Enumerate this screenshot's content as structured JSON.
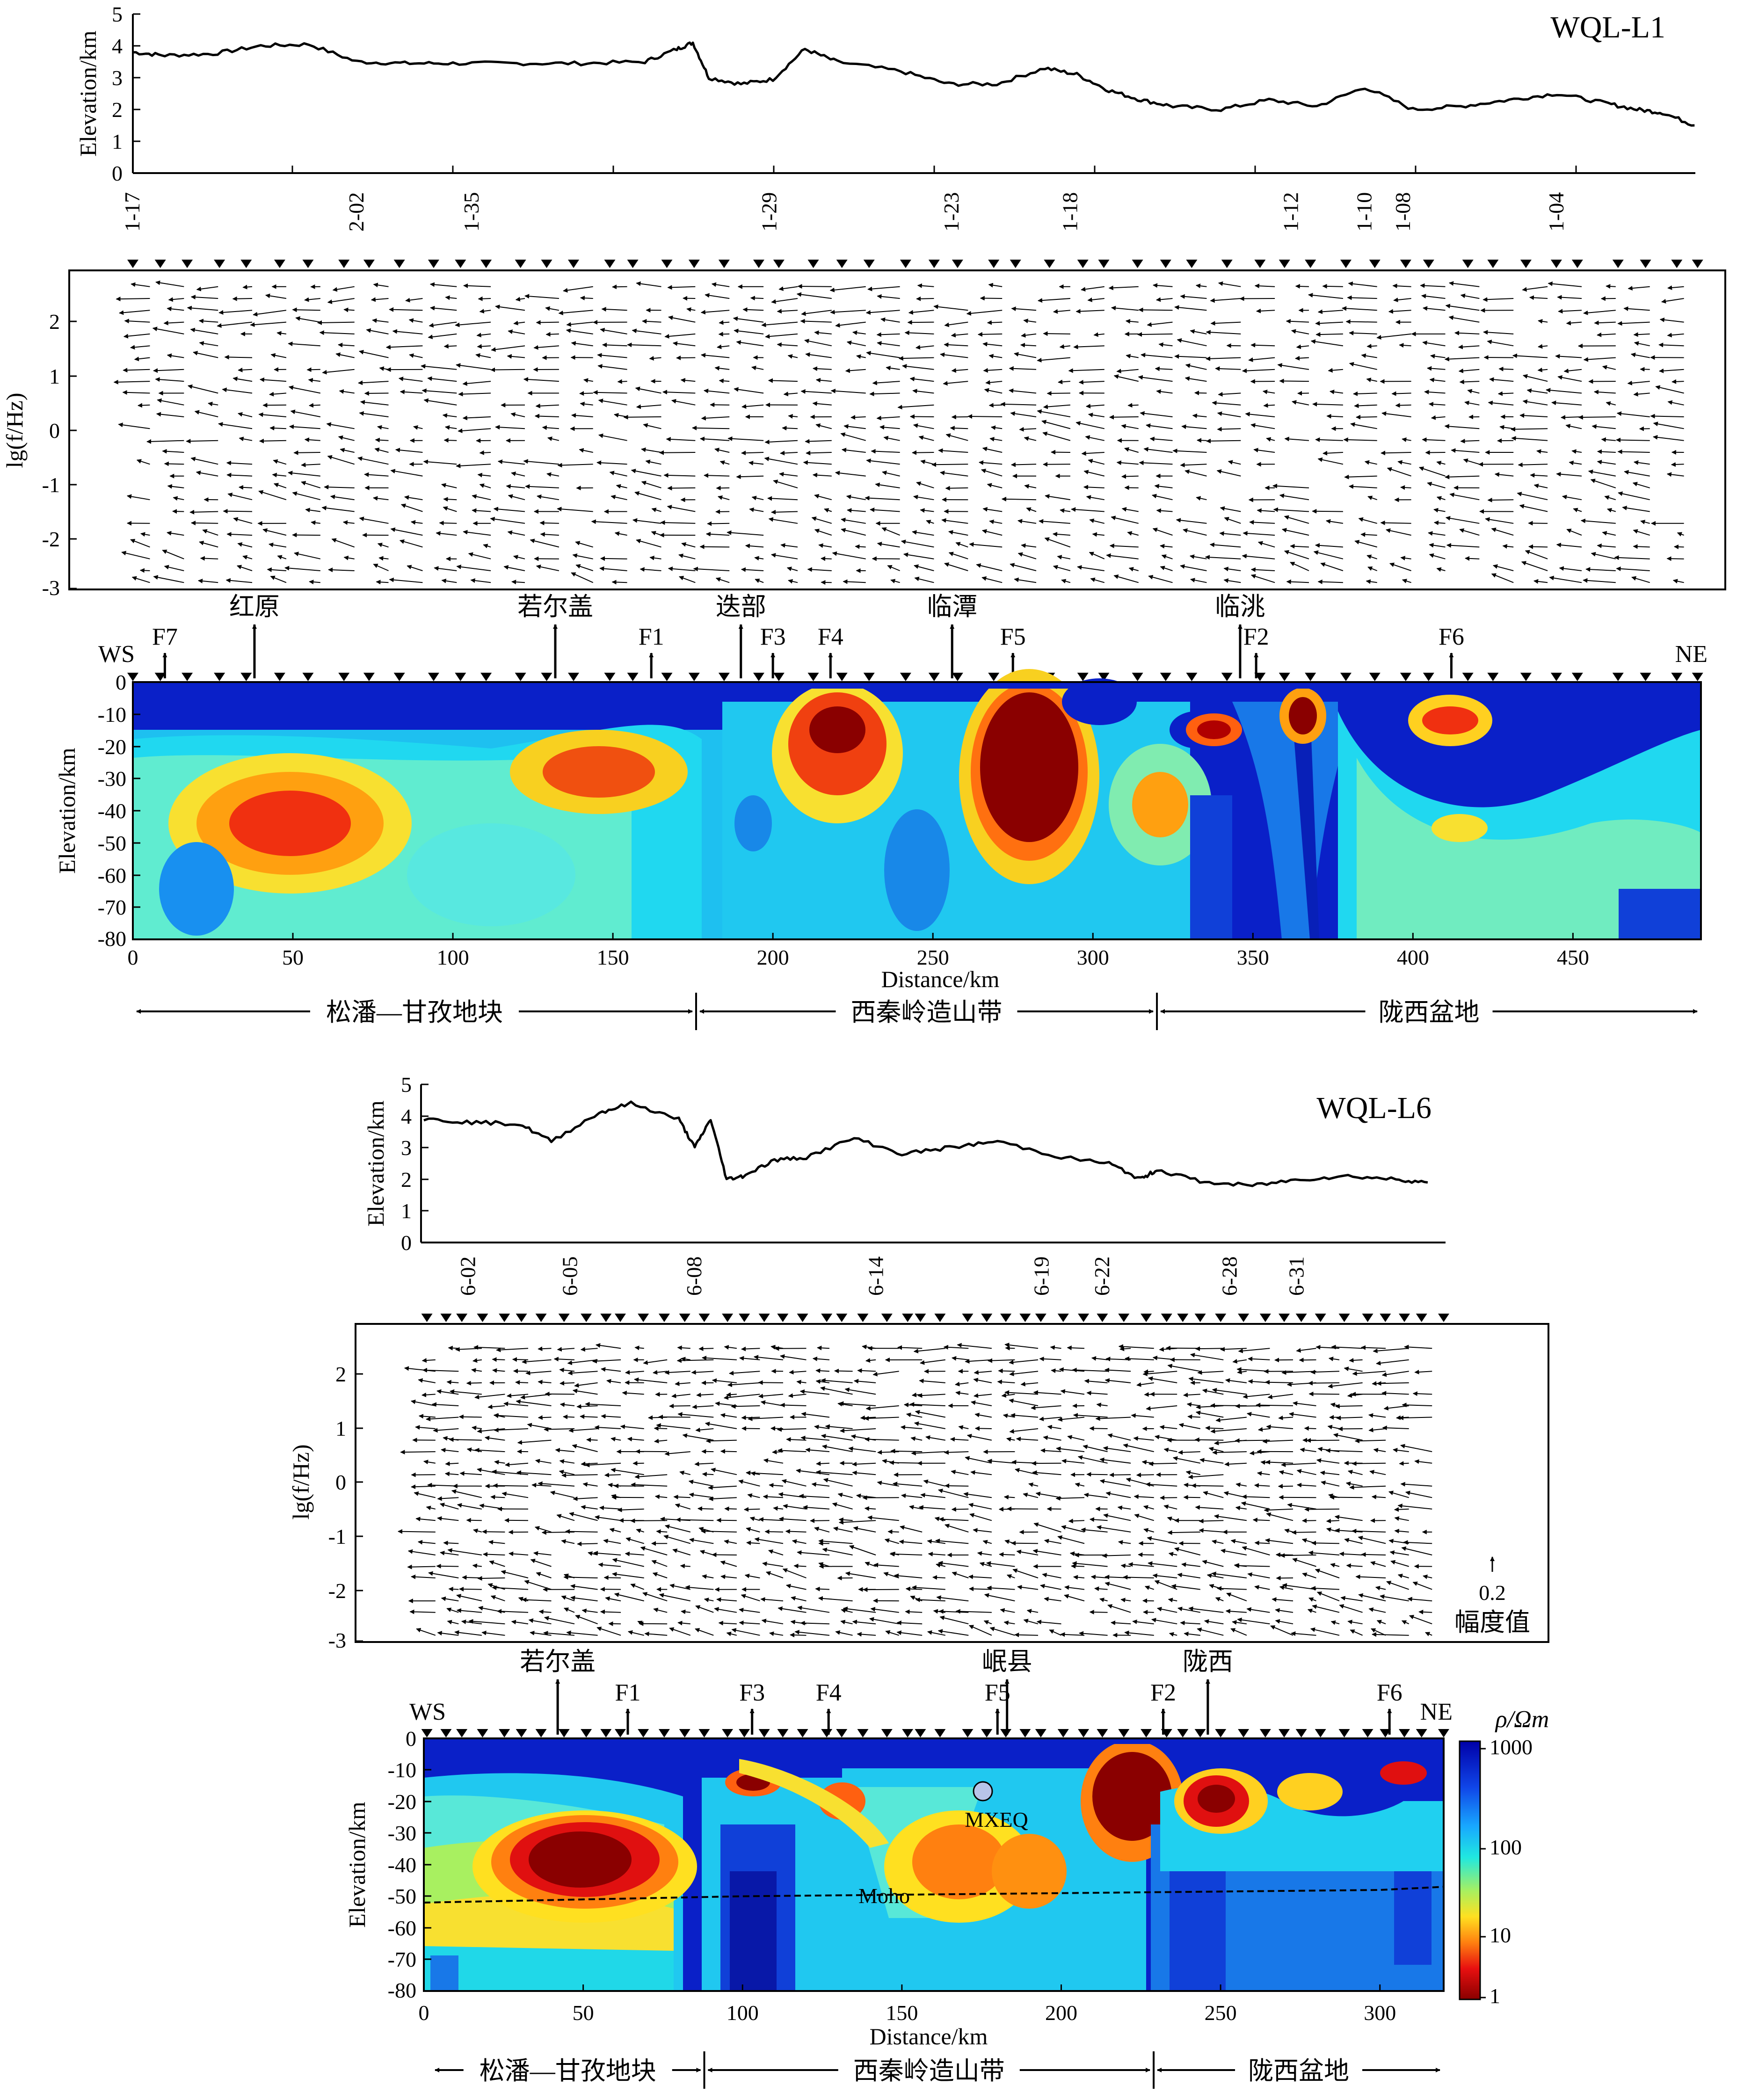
{
  "figure": {
    "colorbar_label": "ρ/Ωm",
    "colorbar_ticks": [
      "1000",
      "100",
      "10",
      "1"
    ],
    "arrow_scale_value": "0.2",
    "arrow_scale_label": "幅度值",
    "moho_label": "Moho",
    "mxeq_label": "MXEQ"
  },
  "chart_data": [
    {
      "name": "WQL-L1",
      "type": "line",
      "title": "WQL-L1",
      "ws_label": "WS",
      "ne_label": "NE",
      "xlabel": "Distance/km",
      "xlim": [
        0,
        490
      ],
      "x_ticks": [
        0,
        50,
        100,
        150,
        200,
        250,
        300,
        350,
        400,
        450
      ],
      "elevation": {
        "ylabel": "Elevation/km",
        "ylim": [
          0,
          5
        ],
        "y_ticks": [
          0,
          1,
          2,
          3,
          4,
          5
        ],
        "x": [
          0,
          10,
          25,
          40,
          55,
          70,
          85,
          100,
          120,
          140,
          160,
          170,
          175,
          180,
          190,
          200,
          210,
          220,
          240,
          255,
          270,
          285,
          295,
          305,
          315,
          325,
          340,
          355,
          370,
          385,
          400,
          415,
          430,
          445,
          460,
          470,
          478,
          488
        ],
        "y": [
          3.8,
          3.7,
          3.75,
          4.0,
          4.05,
          3.5,
          3.45,
          3.45,
          3.45,
          3.45,
          3.5,
          3.9,
          4.1,
          3.0,
          2.8,
          2.95,
          3.9,
          3.5,
          3.2,
          2.8,
          2.8,
          3.3,
          3.1,
          2.6,
          2.3,
          2.1,
          2.0,
          2.3,
          2.1,
          2.7,
          2.0,
          2.1,
          2.3,
          2.5,
          2.2,
          2.0,
          1.9,
          1.5
        ]
      },
      "stations": [
        {
          "label": "1-17",
          "x": 0
        },
        {
          "label": "2-02",
          "x": 70
        },
        {
          "label": "1-35",
          "x": 106
        },
        {
          "label": "1-29",
          "x": 199
        },
        {
          "label": "1-23",
          "x": 256
        },
        {
          "label": "1-18",
          "x": 293
        },
        {
          "label": "1-12",
          "x": 362
        },
        {
          "label": "1-10",
          "x": 385
        },
        {
          "label": "1-08",
          "x": 397
        },
        {
          "label": "1-04",
          "x": 445
        }
      ],
      "induction_arrows": {
        "ylabel": "lg(f/Hz)",
        "ylim": [
          -3,
          3
        ],
        "y_ticks": [
          -3,
          -2,
          -1,
          0,
          1,
          2
        ]
      },
      "resistivity_model": {
        "ylabel": "Elevation/km",
        "ylim": [
          -80,
          0
        ],
        "y_ticks": [
          0,
          -10,
          -20,
          -30,
          -40,
          -50,
          -60,
          -70,
          -80
        ],
        "towns": [
          {
            "label": "红原",
            "x": 38
          },
          {
            "label": "若尔盖",
            "x": 132
          },
          {
            "label": "迭部",
            "x": 190
          },
          {
            "label": "临潭",
            "x": 256
          },
          {
            "label": "临洮",
            "x": 346
          }
        ],
        "faults": [
          {
            "label": "F7",
            "x": 10
          },
          {
            "label": "F1",
            "x": 162
          },
          {
            "label": "F3",
            "x": 200
          },
          {
            "label": "F4",
            "x": 218
          },
          {
            "label": "F5",
            "x": 275
          },
          {
            "label": "F2",
            "x": 351
          },
          {
            "label": "F6",
            "x": 412
          }
        ]
      },
      "tectonic_units": [
        {
          "label": "松潘—甘孜地块",
          "from": 0,
          "to": 176
        },
        {
          "label": "西秦岭造山带",
          "from": 176,
          "to": 320
        },
        {
          "label": "陇西盆地",
          "from": 320,
          "to": 490
        }
      ]
    },
    {
      "name": "WQL-L6",
      "type": "line",
      "title": "WQL-L6",
      "ws_label": "WS",
      "ne_label": "NE",
      "xlabel": "Distance/km",
      "xlim": [
        0,
        320
      ],
      "x_ticks": [
        0,
        50,
        100,
        150,
        200,
        250,
        300
      ],
      "elevation": {
        "ylabel": "Elevation/km",
        "ylim": [
          0,
          5
        ],
        "y_ticks": [
          0,
          1,
          2,
          3,
          4,
          5
        ],
        "x": [
          0,
          15,
          30,
          40,
          55,
          65,
          80,
          85,
          90,
          95,
          100,
          110,
          120,
          135,
          150,
          165,
          180,
          200,
          215,
          225,
          230,
          245,
          260,
          275,
          290,
          305,
          315
        ],
        "y": [
          3.9,
          3.8,
          3.75,
          3.2,
          4.1,
          4.4,
          3.9,
          3.0,
          3.9,
          2.0,
          2.1,
          2.6,
          2.7,
          3.3,
          2.8,
          3.0,
          3.2,
          2.7,
          2.5,
          2.0,
          2.3,
          1.9,
          1.8,
          2.0,
          2.1,
          2.0,
          1.9
        ]
      },
      "stations": [
        {
          "label": "6-02",
          "x": 14
        },
        {
          "label": "6-05",
          "x": 46
        },
        {
          "label": "6-08",
          "x": 85
        },
        {
          "label": "6-14",
          "x": 142
        },
        {
          "label": "6-19",
          "x": 194
        },
        {
          "label": "6-22",
          "x": 213
        },
        {
          "label": "6-28",
          "x": 253
        },
        {
          "label": "6-31",
          "x": 274
        }
      ],
      "induction_arrows": {
        "ylabel": "lg(f/Hz)",
        "ylim": [
          -3,
          3
        ],
        "y_ticks": [
          -3,
          -2,
          -1,
          0,
          1,
          2
        ]
      },
      "resistivity_model": {
        "ylabel": "Elevation/km",
        "ylim": [
          -80,
          0
        ],
        "y_ticks": [
          0,
          -10,
          -20,
          -30,
          -40,
          -50,
          -60,
          -70,
          -80
        ],
        "towns": [
          {
            "label": "若尔盖",
            "x": 42
          },
          {
            "label": "岷县",
            "x": 183
          },
          {
            "label": "陇西",
            "x": 246
          }
        ],
        "faults": [
          {
            "label": "F1",
            "x": 64
          },
          {
            "label": "F3",
            "x": 103
          },
          {
            "label": "F4",
            "x": 127
          },
          {
            "label": "F5",
            "x": 180
          },
          {
            "label": "F2",
            "x": 232
          },
          {
            "label": "F6",
            "x": 303
          }
        ],
        "earthquake": {
          "label": "MXEQ",
          "x": 176,
          "depth": -16
        },
        "moho": {
          "x": [
            0,
            100,
            200,
            300,
            320
          ],
          "depth": [
            -52,
            -50,
            -49,
            -48,
            -47
          ]
        }
      },
      "tectonic_units": [
        {
          "label": "松潘—甘孜地块",
          "from": 0,
          "to": 88
        },
        {
          "label": "西秦岭造山带",
          "from": 88,
          "to": 229
        },
        {
          "label": "陇西盆地",
          "from": 229,
          "to": 320
        }
      ]
    }
  ]
}
